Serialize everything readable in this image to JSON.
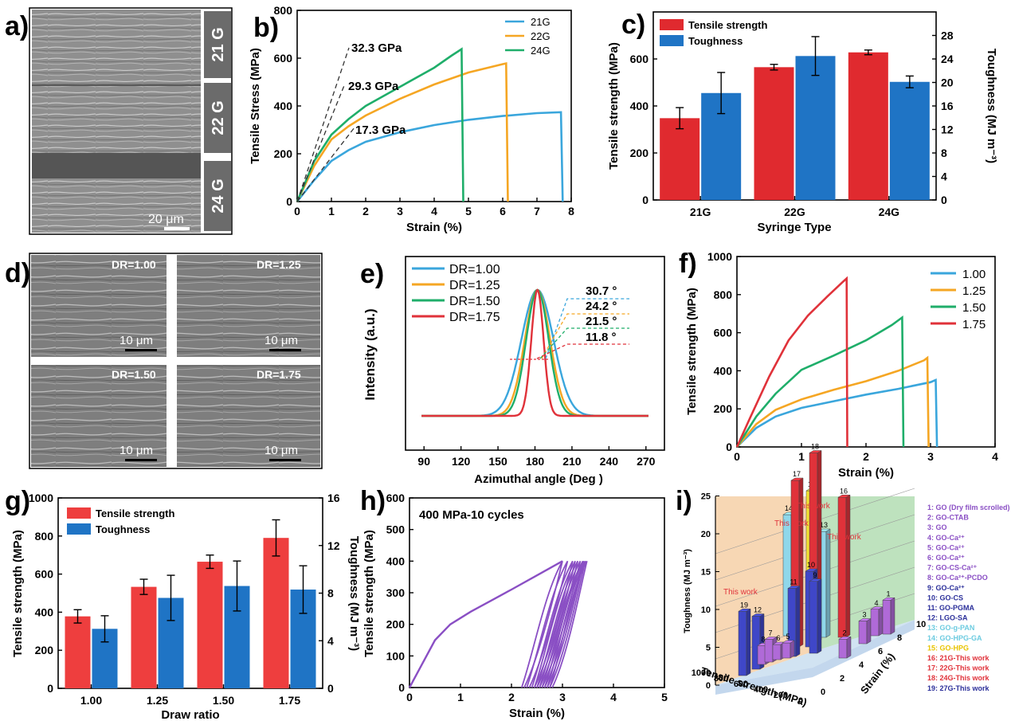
{
  "panels": {
    "a": {
      "label": "a)",
      "scale_bar": "20 μm",
      "strips": [
        "21 G",
        "22 G",
        "24 G"
      ]
    },
    "b": {
      "label": "b)"
    },
    "c": {
      "label": "c)"
    },
    "d": {
      "label": "d)",
      "images": [
        {
          "dr": "DR=1.00",
          "scale": "10 μm"
        },
        {
          "dr": "DR=1.25",
          "scale": "10 μm"
        },
        {
          "dr": "DR=1.50",
          "scale": "10 μm"
        },
        {
          "dr": "DR=1.75",
          "scale": "10 μm"
        }
      ]
    },
    "e": {
      "label": "e)"
    },
    "f": {
      "label": "f)"
    },
    "g": {
      "label": "g)"
    },
    "h": {
      "label": "h)"
    },
    "i": {
      "label": "i)"
    }
  },
  "colors": {
    "blue": "#3aa6dc",
    "orange": "#f5a623",
    "green": "#1fae6a",
    "red": "#e0323a",
    "bar_red": "#e02a2f",
    "bar_blue": "#1f74c5",
    "purple": "#8a4fc4"
  },
  "chart_data": [
    {
      "panel": "b",
      "type": "line",
      "xlabel": "Strain (%)",
      "ylabel": "Tensile Stress (MPa)",
      "xlim": [
        0,
        8
      ],
      "ylim": [
        0,
        800
      ],
      "xticks": [
        0,
        1,
        2,
        3,
        4,
        5,
        6,
        7,
        8
      ],
      "yticks": [
        0,
        200,
        400,
        600,
        800
      ],
      "legend": [
        "21G",
        "22G",
        "24G"
      ],
      "legend_position": "top-right",
      "annotations": [
        "32.3 GPa",
        "29.3 GPa",
        "17.3 GPa"
      ],
      "series": [
        {
          "name": "21G",
          "color": "#3aa6dc",
          "points": [
            [
              0,
              0
            ],
            [
              0.5,
              90
            ],
            [
              1,
              170
            ],
            [
              1.5,
              215
            ],
            [
              2,
              250
            ],
            [
              3,
              290
            ],
            [
              4,
              320
            ],
            [
              5,
              342
            ],
            [
              6,
              358
            ],
            [
              7,
              370
            ],
            [
              7.7,
              374
            ],
            [
              7.75,
              0
            ]
          ]
        },
        {
          "name": "22G",
          "color": "#f5a623",
          "points": [
            [
              0,
              0
            ],
            [
              0.5,
              150
            ],
            [
              1,
              260
            ],
            [
              1.5,
              315
            ],
            [
              2,
              360
            ],
            [
              3,
              430
            ],
            [
              4,
              490
            ],
            [
              5,
              540
            ],
            [
              6,
              575
            ],
            [
              6.1,
              578
            ],
            [
              6.15,
              0
            ]
          ]
        },
        {
          "name": "24G",
          "color": "#1fae6a",
          "points": [
            [
              0,
              0
            ],
            [
              0.5,
              170
            ],
            [
              1,
              280
            ],
            [
              1.5,
              345
            ],
            [
              2,
              400
            ],
            [
              3,
              480
            ],
            [
              4,
              560
            ],
            [
              4.5,
              610
            ],
            [
              4.8,
              638
            ],
            [
              4.85,
              0
            ]
          ]
        }
      ]
    },
    {
      "panel": "c",
      "type": "bar",
      "xlabel": "Syringe Type",
      "ylabel": "Tensile strength (MPa)",
      "y2label": "Toughness (MJ m⁻³)",
      "categories": [
        "21G",
        "22G",
        "24G"
      ],
      "ylim": [
        0,
        800
      ],
      "yticks": [
        0,
        200,
        400,
        600
      ],
      "y2lim": [
        0,
        32
      ],
      "y2ticks": [
        0,
        4,
        8,
        12,
        16,
        20,
        24,
        28
      ],
      "legend_position": "top-left",
      "series": [
        {
          "name": "Tensile strength",
          "axis": "left",
          "color": "#e02a2f",
          "values": [
            348,
            565,
            628
          ],
          "errors": [
            45,
            12,
            10
          ]
        },
        {
          "name": "Toughness",
          "axis": "right",
          "color": "#1f74c5",
          "values": [
            18.2,
            24.5,
            20.1
          ],
          "errors": [
            3.5,
            3.3,
            1.0
          ]
        }
      ]
    },
    {
      "panel": "e",
      "type": "line",
      "xlabel": "Azimuthal angle (Deg )",
      "ylabel": "Intensity (a.u.)",
      "xlim": [
        75,
        285
      ],
      "xticks": [
        90,
        120,
        150,
        180,
        210,
        240,
        270
      ],
      "legend_position": "top-left",
      "fwhm_labels": [
        "30.7 °",
        "24.2 °",
        "21.5 °",
        "11.8 °"
      ],
      "series": [
        {
          "name": "DR=1.00",
          "color": "#3aa6dc",
          "center": 182,
          "fwhm": 30.7
        },
        {
          "name": "DR=1.25",
          "color": "#f5a623",
          "center": 182,
          "fwhm": 24.2
        },
        {
          "name": "DR=1.50",
          "color": "#1fae6a",
          "center": 182,
          "fwhm": 21.5
        },
        {
          "name": "DR=1.75",
          "color": "#e0323a",
          "center": 182,
          "fwhm": 11.8
        }
      ]
    },
    {
      "panel": "f",
      "type": "line",
      "xlabel": "Strain (%)",
      "ylabel": "Tensile strength (MPa)",
      "xlim": [
        0,
        4
      ],
      "ylim": [
        0,
        1000
      ],
      "xticks": [
        0,
        1,
        2,
        3,
        4
      ],
      "yticks": [
        0,
        200,
        400,
        600,
        800,
        1000
      ],
      "legend_position": "top-right",
      "series": [
        {
          "name": "1.00",
          "color": "#3aa6dc",
          "points": [
            [
              0,
              0
            ],
            [
              0.3,
              100
            ],
            [
              0.6,
              160
            ],
            [
              1,
              205
            ],
            [
              1.5,
              240
            ],
            [
              2,
              275
            ],
            [
              2.5,
              305
            ],
            [
              3,
              340
            ],
            [
              3.08,
              352
            ],
            [
              3.1,
              0
            ]
          ]
        },
        {
          "name": "1.25",
          "color": "#f5a623",
          "points": [
            [
              0,
              0
            ],
            [
              0.3,
              120
            ],
            [
              0.6,
              195
            ],
            [
              1,
              250
            ],
            [
              1.5,
              300
            ],
            [
              2,
              345
            ],
            [
              2.5,
              400
            ],
            [
              2.9,
              455
            ],
            [
              2.95,
              468
            ],
            [
              2.97,
              0
            ]
          ]
        },
        {
          "name": "1.50",
          "color": "#1fae6a",
          "points": [
            [
              0,
              0
            ],
            [
              0.3,
              160
            ],
            [
              0.6,
              280
            ],
            [
              1,
              405
            ],
            [
              1.5,
              480
            ],
            [
              2,
              560
            ],
            [
              2.4,
              640
            ],
            [
              2.56,
              680
            ],
            [
              2.58,
              0
            ]
          ]
        },
        {
          "name": "1.75",
          "color": "#e0323a",
          "points": [
            [
              0,
              0
            ],
            [
              0.2,
              150
            ],
            [
              0.5,
              370
            ],
            [
              0.8,
              560
            ],
            [
              1.1,
              690
            ],
            [
              1.4,
              790
            ],
            [
              1.65,
              870
            ],
            [
              1.7,
              885
            ],
            [
              1.71,
              0
            ]
          ]
        }
      ]
    },
    {
      "panel": "g",
      "type": "bar",
      "xlabel": "Draw  ratio",
      "ylabel": "Tensile strength (MPa)",
      "y2label": "Toughness (MJ m⁻³)",
      "categories": [
        "1.00",
        "1.25",
        "1.50",
        "1.75"
      ],
      "ylim": [
        0,
        1000
      ],
      "yticks": [
        0,
        200,
        400,
        600,
        800,
        1000
      ],
      "y2lim": [
        0,
        16
      ],
      "y2ticks": [
        0,
        4,
        8,
        12,
        16
      ],
      "legend_position": "top-left",
      "series": [
        {
          "name": "Tensile strength",
          "axis": "left",
          "color": "#ee3e3e",
          "values": [
            378,
            533,
            665,
            790
          ],
          "errors": [
            35,
            40,
            35,
            95
          ]
        },
        {
          "name": "Toughness",
          "axis": "right",
          "color": "#1f74c5",
          "values": [
            5.0,
            7.6,
            8.6,
            8.3
          ],
          "errors": [
            1.1,
            1.9,
            2.1,
            2.0
          ]
        }
      ]
    },
    {
      "panel": "h",
      "type": "line",
      "title": "400 MPa-10 cycles",
      "xlabel": "Strain (%)",
      "ylabel": "Tensile strength (MPa)",
      "xlim": [
        0,
        5
      ],
      "ylim": [
        0,
        600
      ],
      "xticks": [
        0,
        1,
        2,
        3,
        4,
        5
      ],
      "yticks": [
        0,
        100,
        200,
        300,
        400,
        500,
        600
      ],
      "series": [
        {
          "name": "",
          "color": "#8a4fc4",
          "loading": [
            [
              0,
              0
            ],
            [
              0.2,
              60
            ],
            [
              0.5,
              150
            ],
            [
              0.8,
              200
            ],
            [
              1.2,
              240
            ],
            [
              1.6,
              275
            ],
            [
              2,
              310
            ],
            [
              2.5,
              355
            ],
            [
              3,
              400
            ]
          ],
          "cycles": [
            [
              2.2,
              3.0
            ],
            [
              2.3,
              3.1
            ],
            [
              2.4,
              3.2
            ],
            [
              2.45,
              3.25
            ],
            [
              2.5,
              3.3
            ],
            [
              2.55,
              3.35
            ],
            [
              2.6,
              3.4
            ],
            [
              2.65,
              3.42
            ],
            [
              2.7,
              3.45
            ],
            [
              2.75,
              3.48
            ]
          ]
        }
      ]
    },
    {
      "panel": "i",
      "type": "bar",
      "xlabel": "Tensile strength (MPa)",
      "ylabel": "Toughness (MJ m⁻³)",
      "zlabel": "Strain (%)",
      "yticks": [
        0,
        5,
        10,
        15,
        20,
        25
      ],
      "xticks": [
        1000,
        800,
        600,
        400,
        200,
        0
      ],
      "ztick_labels": [
        0,
        2,
        4,
        6,
        8,
        10
      ],
      "this_work_label": "This work",
      "legend": [
        {
          "text": "1: GO (Dry film scrolled)",
          "color": "#8a4fc4"
        },
        {
          "text": "2: GO-CTAB",
          "color": "#8a4fc4"
        },
        {
          "text": "3: GO",
          "color": "#8a4fc4"
        },
        {
          "text": "4: GO-Ca²⁺",
          "color": "#8a4fc4"
        },
        {
          "text": "5: GO-Ca²⁺",
          "color": "#8a4fc4"
        },
        {
          "text": "6: GO-Ca²⁺",
          "color": "#8a4fc4"
        },
        {
          "text": "7: GO-CS-Ca²⁺",
          "color": "#8a4fc4"
        },
        {
          "text": "8: GO-Ca²⁺-PCDO",
          "color": "#8a4fc4"
        },
        {
          "text": "9: GO-Ca²⁺",
          "color": "#2b2f9a"
        },
        {
          "text": "10: GO-CS",
          "color": "#2b2f9a"
        },
        {
          "text": "11: GO-PGMA",
          "color": "#2b2f9a"
        },
        {
          "text": "12: LGO-SA",
          "color": "#2b2f9a"
        },
        {
          "text": "13: GO-g-PAN",
          "color": "#6ccbe0"
        },
        {
          "text": "14: GO-HPG-GA",
          "color": "#6ccbe0"
        },
        {
          "text": "15: GO-HPG",
          "color": "#e8c400"
        },
        {
          "text": "16: 21G-This work",
          "color": "#e0323a"
        },
        {
          "text": "17: 22G-This work",
          "color": "#e0323a"
        },
        {
          "text": "18: 24G-This work",
          "color": "#e0323a"
        },
        {
          "text": "19: 27G-This work",
          "color": "#2b2f9a"
        }
      ],
      "bars": [
        {
          "id": "1",
          "toughness": 4.5,
          "color": "#b06ad8"
        },
        {
          "id": "2",
          "toughness": 2.5,
          "color": "#b06ad8"
        },
        {
          "id": "3",
          "toughness": 3.0,
          "color": "#b06ad8"
        },
        {
          "id": "4",
          "toughness": 3.5,
          "color": "#b06ad8"
        },
        {
          "id": "5",
          "toughness": 2.0,
          "color": "#b06ad8"
        },
        {
          "id": "6",
          "toughness": 2.0,
          "color": "#b06ad8"
        },
        {
          "id": "7",
          "toughness": 3.0,
          "color": "#b06ad8"
        },
        {
          "id": "8",
          "toughness": 2.5,
          "color": "#b06ad8"
        },
        {
          "id": "9",
          "toughness": 9.5,
          "color": "#3f47c8"
        },
        {
          "id": "10",
          "toughness": 10.0,
          "color": "#3f47c8"
        },
        {
          "id": "11",
          "toughness": 9.0,
          "color": "#3f47c8"
        },
        {
          "id": "12",
          "toughness": 7.0,
          "color": "#3f47c8"
        },
        {
          "id": "13",
          "toughness": 14.0,
          "color": "#8fd7ea"
        },
        {
          "id": "14",
          "toughness": 16.0,
          "color": "#8fd7ea"
        },
        {
          "id": "15",
          "toughness": 20.0,
          "color": "#f5e233"
        },
        {
          "id": "16",
          "toughness": 18.5,
          "color": "#e0323a"
        },
        {
          "id": "17",
          "toughness": 22.0,
          "color": "#e0323a"
        },
        {
          "id": "18",
          "toughness": 25.0,
          "color": "#e0323a"
        },
        {
          "id": "19",
          "toughness": 8.5,
          "color": "#3f47c8"
        }
      ]
    }
  ]
}
